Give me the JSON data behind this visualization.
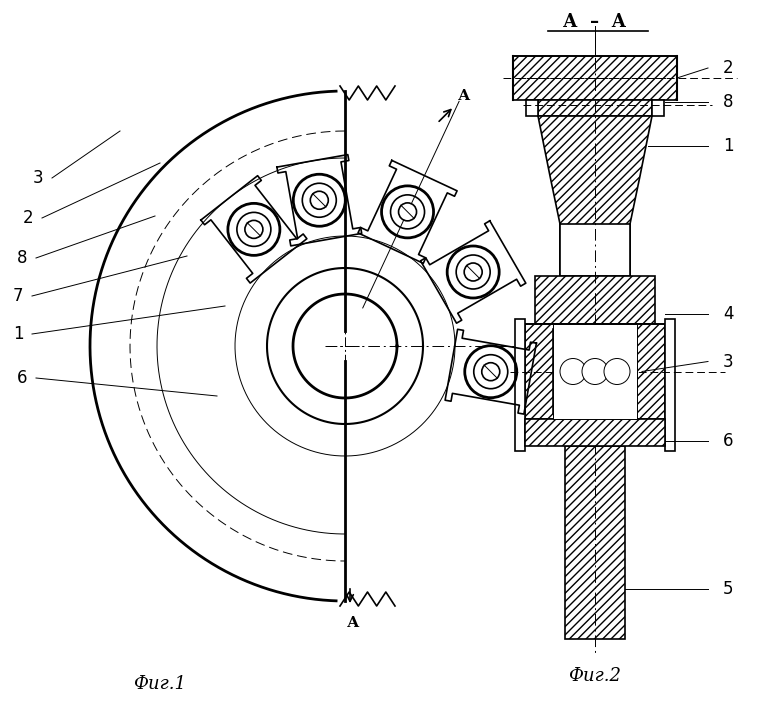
{
  "fig1_label": "Фиг.1",
  "fig2_label": "Фиг.2",
  "section_label": "А  –  А",
  "bg_color": "#ffffff",
  "line_color": "#000000",
  "fig_width": 7.8,
  "fig_height": 7.14,
  "dpi": 100
}
